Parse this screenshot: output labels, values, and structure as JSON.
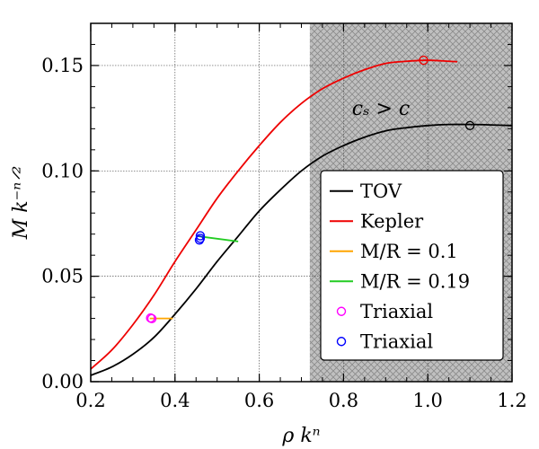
{
  "chart_data": {
    "type": "line",
    "xlabel": "ρ kⁿ",
    "ylabel": "M k⁻ⁿᐟ²",
    "xlim": [
      0.2,
      1.2
    ],
    "ylim": [
      0.0,
      0.17
    ],
    "xticks": [
      0.2,
      0.4,
      0.6,
      0.8,
      1.0,
      1.2
    ],
    "xtick_labels": [
      "0.2",
      "0.4",
      "0.6",
      "0.8",
      "1.0",
      "1.2"
    ],
    "yticks": [
      0.0,
      0.05,
      0.1,
      0.15
    ],
    "ytick_labels": [
      "0.00",
      "0.05",
      "0.10",
      "0.15"
    ],
    "grid": true,
    "legend_position": "bottom-right",
    "shaded_region": {
      "x_start": 0.72,
      "x_end": 1.2,
      "label": "cₛ > c",
      "color": "#c0c0c0"
    },
    "series": [
      {
        "name": "TOV",
        "color": "#000000",
        "x": [
          0.2,
          0.25,
          0.3,
          0.35,
          0.4,
          0.45,
          0.5,
          0.55,
          0.6,
          0.65,
          0.7,
          0.75,
          0.8,
          0.85,
          0.9,
          0.95,
          1.0,
          1.05,
          1.1,
          1.15,
          1.2
        ],
        "y": [
          0.003,
          0.007,
          0.013,
          0.021,
          0.032,
          0.044,
          0.057,
          0.069,
          0.081,
          0.091,
          0.1,
          0.107,
          0.112,
          0.116,
          0.119,
          0.1205,
          0.1215,
          0.122,
          0.122,
          0.1218,
          0.1215
        ]
      },
      {
        "name": "Kepler",
        "color": "#ee0000",
        "x": [
          0.2,
          0.25,
          0.3,
          0.35,
          0.4,
          0.45,
          0.5,
          0.55,
          0.6,
          0.65,
          0.7,
          0.75,
          0.8,
          0.85,
          0.9,
          0.95,
          1.0,
          1.05,
          1.07
        ],
        "y": [
          0.006,
          0.015,
          0.027,
          0.041,
          0.057,
          0.072,
          0.087,
          0.1,
          0.112,
          0.123,
          0.132,
          0.139,
          0.144,
          0.148,
          0.151,
          0.152,
          0.1525,
          0.152,
          0.1518
        ]
      },
      {
        "name": "M/R = 0.1",
        "color": "#ffa500",
        "x": [
          0.34,
          0.395
        ],
        "y": [
          0.03,
          0.03
        ]
      },
      {
        "name": "M/R = 0.19",
        "color": "#22cc22",
        "x": [
          0.455,
          0.55
        ],
        "y": [
          0.069,
          0.0665
        ]
      }
    ],
    "markers": [
      {
        "name": "Triaxial",
        "color": "#ff00ff",
        "points": [
          [
            0.342,
            0.0302
          ],
          [
            0.345,
            0.0299
          ]
        ]
      },
      {
        "name": "Triaxial",
        "color": "#0000ff",
        "points": [
          [
            0.46,
            0.0692
          ],
          [
            0.46,
            0.068
          ],
          [
            0.458,
            0.0672
          ]
        ]
      }
    ],
    "curve_end_markers": [
      {
        "series": "TOV",
        "color": "#000000",
        "x": 1.1,
        "y": 0.1215
      },
      {
        "series": "Kepler",
        "color": "#ee0000",
        "x": 0.99,
        "y": 0.1525
      }
    ]
  }
}
